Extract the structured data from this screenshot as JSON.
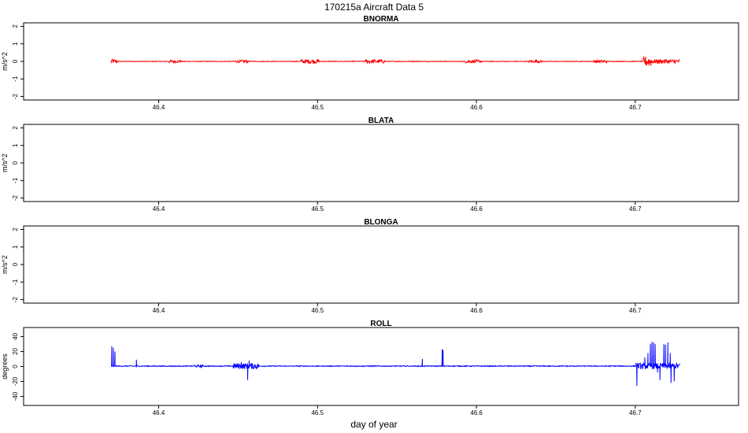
{
  "title": "170215a   Aircraft Data 5",
  "chart_data": {
    "type": "line",
    "xlabel": "day of year",
    "xlim": [
      46.315,
      46.765
    ],
    "xticks": [
      46.4,
      46.5,
      46.6,
      46.7
    ],
    "xtick_labels": [
      "46.4",
      "46.5",
      "46.6",
      "46.7"
    ],
    "x_start": 46.37,
    "x_end": 46.728,
    "panels": [
      {
        "title": "BNORMA",
        "ylabel": "m/s^2",
        "ylim": [
          -2.2,
          2.2
        ],
        "yticks": [
          -2,
          -1,
          0,
          1,
          2
        ],
        "ytick_labels": [
          "-2",
          "-1",
          "0",
          "1",
          "2"
        ],
        "color": "#ff0000",
        "has_data": true,
        "baseline": 0,
        "noise": 0.02,
        "bursts": [
          {
            "x": 46.371,
            "amp": 0.12,
            "width": 0.003
          },
          {
            "x": 46.41,
            "amp": 0.08,
            "width": 0.004
          },
          {
            "x": 46.452,
            "amp": 0.07,
            "width": 0.004
          },
          {
            "x": 46.495,
            "amp": 0.12,
            "width": 0.006
          },
          {
            "x": 46.536,
            "amp": 0.11,
            "width": 0.006
          },
          {
            "x": 46.598,
            "amp": 0.09,
            "width": 0.005
          },
          {
            "x": 46.637,
            "amp": 0.07,
            "width": 0.004
          },
          {
            "x": 46.678,
            "amp": 0.08,
            "width": 0.004
          },
          {
            "x": 46.708,
            "amp": 0.3,
            "width": 0.003
          },
          {
            "x": 46.72,
            "amp": 0.12,
            "width": 0.012
          }
        ],
        "spikes": []
      },
      {
        "title": "BLATA",
        "ylabel": "m/s^2",
        "ylim": [
          -2.2,
          2.2
        ],
        "yticks": [
          -2,
          -1,
          0,
          1,
          2
        ],
        "ytick_labels": [
          "-2",
          "-1",
          "0",
          "1",
          "2"
        ],
        "color": "#0000ff",
        "has_data": false
      },
      {
        "title": "BLONGA",
        "ylabel": "m/s^2",
        "ylim": [
          -2.2,
          2.2
        ],
        "yticks": [
          -2,
          -1,
          0,
          1,
          2
        ],
        "ytick_labels": [
          "-2",
          "-1",
          "0",
          "1",
          "2"
        ],
        "color": "#0000ff",
        "has_data": false
      },
      {
        "title": "ROLL",
        "ylabel": "degrees",
        "ylim": [
          -52,
          52
        ],
        "yticks": [
          -40,
          -20,
          0,
          20,
          40
        ],
        "ytick_labels": [
          "-40",
          "-20",
          "0",
          "20",
          "40"
        ],
        "color": "#0000ff",
        "has_data": true,
        "baseline": 0.5,
        "noise": 0.6,
        "bursts": [
          {
            "x": 46.455,
            "amp": 4,
            "width": 0.008
          },
          {
            "x": 46.425,
            "amp": 1.5,
            "width": 0.003
          },
          {
            "x": 46.715,
            "amp": 4,
            "width": 0.014
          }
        ],
        "spikes": [
          {
            "x": 46.3705,
            "y": 27
          },
          {
            "x": 46.3715,
            "y": 25
          },
          {
            "x": 46.3725,
            "y": 20
          },
          {
            "x": 46.386,
            "y": 9
          },
          {
            "x": 46.456,
            "y": -18
          },
          {
            "x": 46.457,
            "y": 8
          },
          {
            "x": 46.452,
            "y": 6
          },
          {
            "x": 46.566,
            "y": 10
          },
          {
            "x": 46.5785,
            "y": 23
          },
          {
            "x": 46.579,
            "y": 22
          },
          {
            "x": 46.701,
            "y": -26
          },
          {
            "x": 46.7005,
            "y": 5
          },
          {
            "x": 46.706,
            "y": 12
          },
          {
            "x": 46.708,
            "y": 18
          },
          {
            "x": 46.7095,
            "y": 30
          },
          {
            "x": 46.7105,
            "y": 33
          },
          {
            "x": 46.7115,
            "y": 32
          },
          {
            "x": 46.7125,
            "y": 30
          },
          {
            "x": 46.714,
            "y": -8
          },
          {
            "x": 46.7155,
            "y": -18
          },
          {
            "x": 46.718,
            "y": 30
          },
          {
            "x": 46.719,
            "y": 29
          },
          {
            "x": 46.7205,
            "y": 32
          },
          {
            "x": 46.722,
            "y": 18
          },
          {
            "x": 46.7225,
            "y": -22
          },
          {
            "x": 46.7245,
            "y": -20
          },
          {
            "x": 46.726,
            "y": 5
          }
        ]
      }
    ]
  }
}
